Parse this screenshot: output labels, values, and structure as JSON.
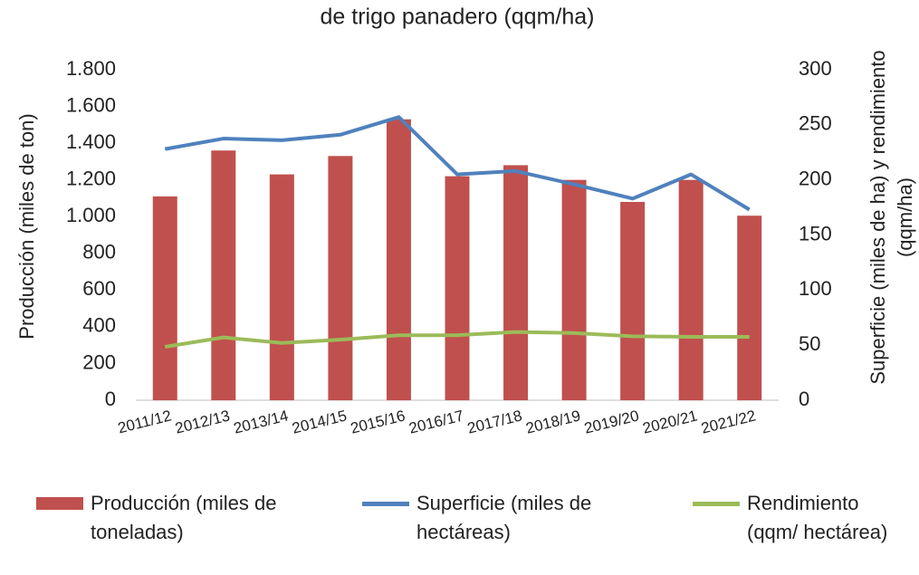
{
  "chart_data": {
    "type": "bar",
    "title": "de trigo panadero (qqm/ha)",
    "y_label": "Producción (miles de ton)",
    "y2_label": "Superficie (miles de ha) y rendimiento (qqm/ha)",
    "categories": [
      "2011/12",
      "2012/13",
      "2013/14",
      "2014/15",
      "2015/16",
      "2016/17",
      "2017/18",
      "2018/19",
      "2019/20",
      "2020/21",
      "2021/22"
    ],
    "series": [
      {
        "name": "Producción (miles de toneladas)",
        "type": "bar",
        "color": "#c0504d",
        "values": [
          1110,
          1360,
          1230,
          1330,
          1530,
          1220,
          1280,
          1200,
          1080,
          1200,
          1005
        ]
      },
      {
        "name": "Superficie (miles de hectáreas)",
        "type": "line",
        "axis": "y2",
        "color": "#4f81bd",
        "values": [
          228,
          237.5,
          236,
          241,
          257,
          205,
          208,
          196,
          183,
          205,
          173
        ]
      },
      {
        "name": "Rendimiento (qqm/ hectárea)",
        "type": "line",
        "axis": "y2",
        "color": "#9bbb59",
        "values": [
          48.5,
          57,
          52,
          55,
          59,
          59,
          62,
          61,
          58,
          57.5,
          57.5
        ]
      }
    ],
    "ylim": [
      0,
      1800
    ],
    "yticks": [
      0,
      200,
      400,
      600,
      800,
      {
        "value": 1000,
        "label": "1.000"
      },
      {
        "value": 1200,
        "label": "1.200"
      },
      {
        "value": 1400,
        "label": "1.400"
      },
      {
        "value": 1600,
        "label": "1.600"
      },
      {
        "value": 1800,
        "label": "1.800"
      }
    ],
    "y2lim": [
      0,
      300
    ],
    "y2ticks": [
      0,
      50,
      100,
      150,
      200,
      250,
      300
    ],
    "grid": false
  }
}
